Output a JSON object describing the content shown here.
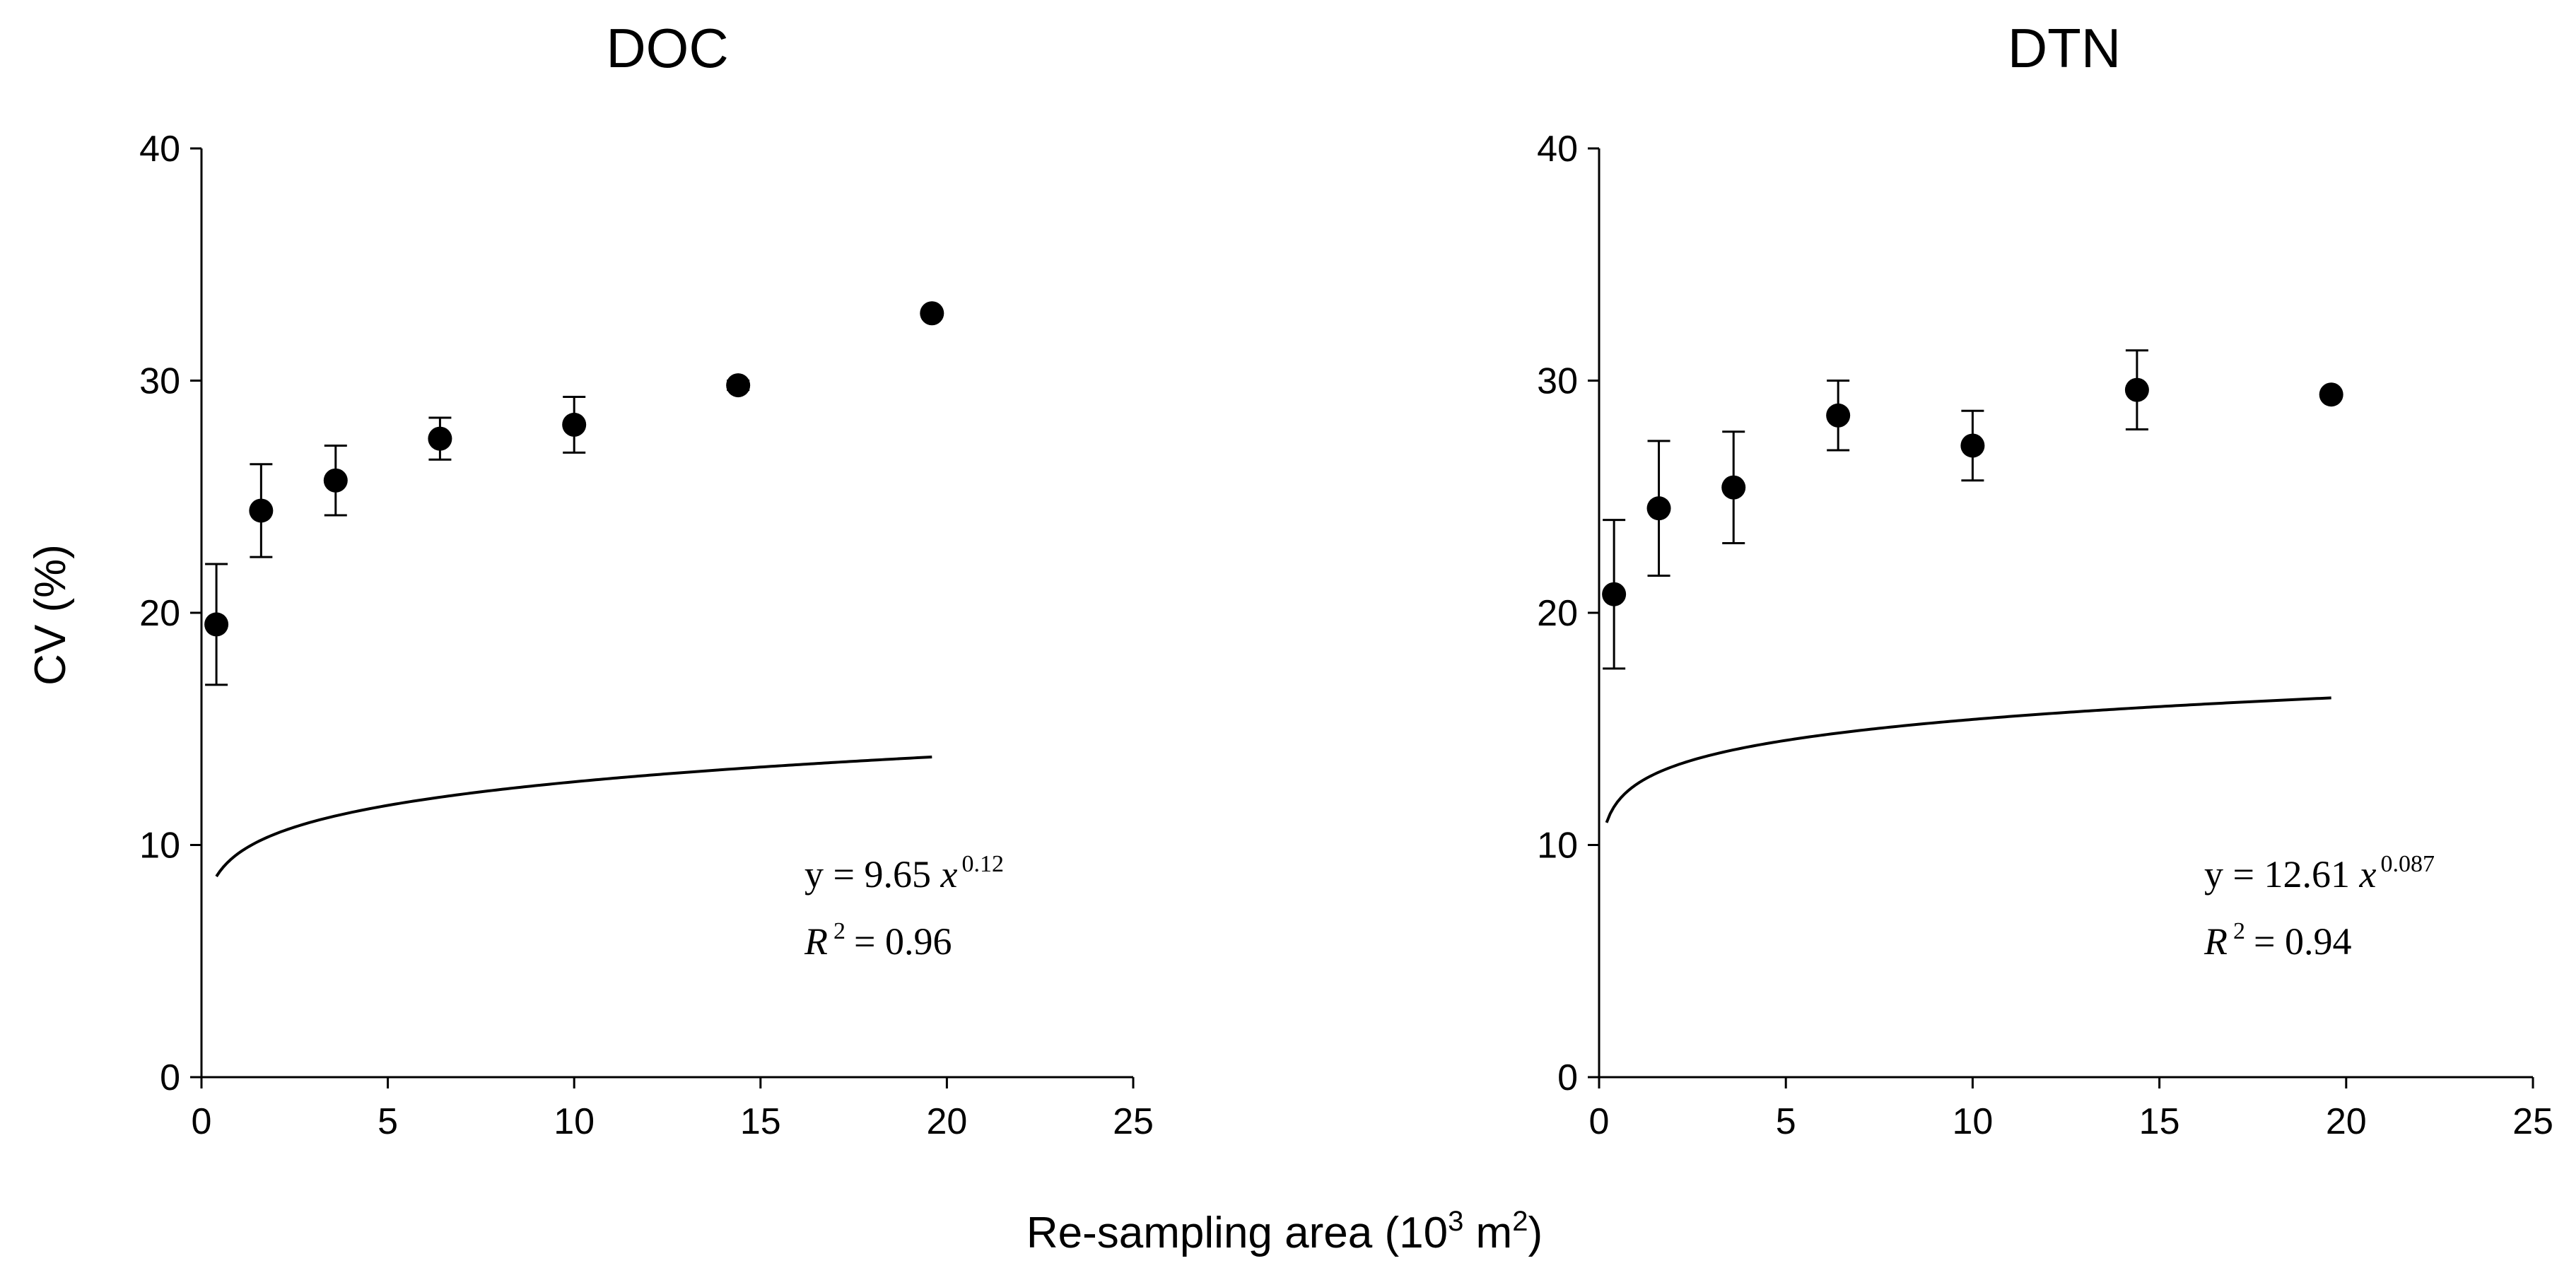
{
  "chart_data": [
    {
      "type": "scatter",
      "title": "DOC",
      "xlim": [
        0,
        25
      ],
      "ylim": [
        0,
        40
      ],
      "xticks": [
        "0",
        "5",
        "10",
        "15",
        "20",
        "25"
      ],
      "yticks": [
        "0",
        "10",
        "20",
        "30",
        "40"
      ],
      "points": [
        {
          "x": 0.4,
          "y": 19.5,
          "err": 2.6
        },
        {
          "x": 1.6,
          "y": 24.4,
          "err": 2.0
        },
        {
          "x": 3.6,
          "y": 25.7,
          "err": 1.5
        },
        {
          "x": 6.4,
          "y": 27.5,
          "err": 0.9
        },
        {
          "x": 10.0,
          "y": 28.1,
          "err": 1.2
        },
        {
          "x": 14.4,
          "y": 29.8,
          "err": 0.2
        },
        {
          "x": 19.6,
          "y": 32.9,
          "err": 0
        }
      ],
      "fit": {
        "a": 9.65,
        "b": 0.12,
        "x_from": 0.4,
        "x_to": 19.6
      },
      "equation": {
        "prefix": "y = 9.65",
        "var": "x",
        "exponent": "0.12",
        "r2_label": "R",
        "r2_sup": "2",
        "r2_value": "= 0.96"
      }
    },
    {
      "type": "scatter",
      "title": "DTN",
      "xlim": [
        0,
        25
      ],
      "ylim": [
        0,
        40
      ],
      "xticks": [
        "0",
        "5",
        "10",
        "15",
        "20",
        "25"
      ],
      "yticks": [
        "0",
        "10",
        "20",
        "30",
        "40"
      ],
      "points": [
        {
          "x": 0.4,
          "y": 20.8,
          "err": 3.2
        },
        {
          "x": 1.6,
          "y": 24.5,
          "err": 2.9
        },
        {
          "x": 3.6,
          "y": 25.4,
          "err": 2.4
        },
        {
          "x": 6.4,
          "y": 28.5,
          "err": 1.5
        },
        {
          "x": 10.0,
          "y": 27.2,
          "err": 1.5
        },
        {
          "x": 14.4,
          "y": 29.6,
          "err": 1.7
        },
        {
          "x": 19.6,
          "y": 29.4,
          "err": 0
        }
      ],
      "fit": {
        "a": 12.61,
        "b": 0.087,
        "x_from": 0.2,
        "x_to": 19.6
      },
      "equation": {
        "prefix": "y = 12.61",
        "var": "x",
        "exponent": "0.087",
        "r2_label": "R",
        "r2_sup": "2",
        "r2_value": "= 0.94"
      }
    }
  ],
  "labels": {
    "ylabel": "CV (%)",
    "xlabel_main": "Re-sampling area (10",
    "xlabel_sup1": "3",
    "xlabel_mid": " m",
    "xlabel_sup2": "2",
    "xlabel_end": ")"
  }
}
